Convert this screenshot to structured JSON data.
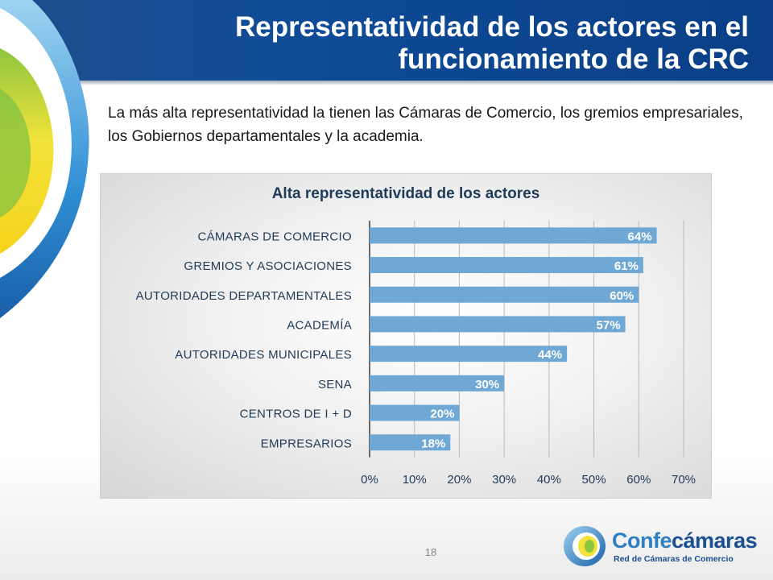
{
  "slide": {
    "title": "Representatividad de los actores en el funcionamiento de la CRC",
    "subtitle": "La más alta representatividad la tienen las Cámaras de Comercio, los gremios empresariales, los Gobiernos departamentales y la academia.",
    "page_number": "18"
  },
  "logo": {
    "name_part1": "Confe",
    "name_part2": "cámaras",
    "tagline": "Red de Cámaras de Comercio"
  },
  "colors": {
    "header_blue": "#0f4b97",
    "bar_blue": "#6fa8d4",
    "title_blue": "#1f3b57"
  },
  "chart_data": {
    "type": "bar",
    "orientation": "horizontal",
    "title": "Alta representatividad de los actores",
    "categories": [
      "CÁMARAS DE COMERCIO",
      "GREMIOS Y ASOCIACIONES",
      "AUTORIDADES DEPARTAMENTALES",
      "ACADEMÍA",
      "AUTORIDADES MUNICIPALES",
      "SENA",
      "CENTROS DE I + D",
      "EMPRESARIOS"
    ],
    "values": [
      64,
      61,
      60,
      57,
      44,
      30,
      20,
      18
    ],
    "value_labels": [
      "64%",
      "61%",
      "60%",
      "57%",
      "44%",
      "30%",
      "20%",
      "18%"
    ],
    "x_ticks": [
      "0%",
      "10%",
      "20%",
      "30%",
      "40%",
      "50%",
      "60%",
      "70%"
    ],
    "xlim": [
      0,
      70
    ],
    "grid": "vertical",
    "legend": "none"
  }
}
